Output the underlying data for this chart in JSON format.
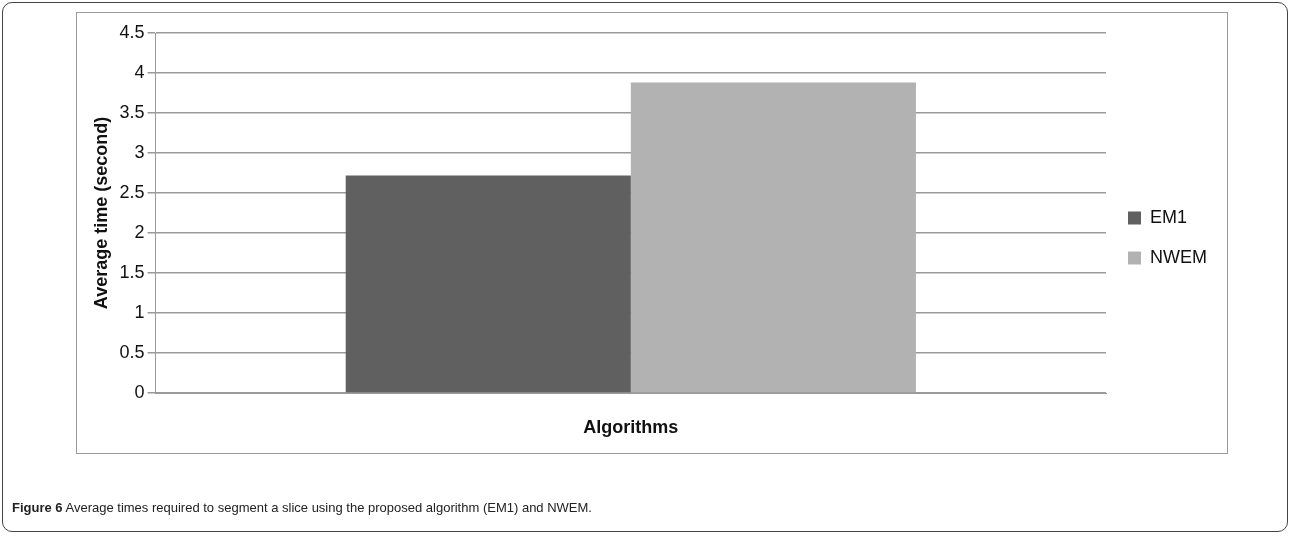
{
  "chart_data": {
    "type": "bar",
    "categories": [
      null
    ],
    "xlabel": "Algorithms",
    "ylabel": "Average time (second)",
    "series": [
      {
        "name": "EM1",
        "color": "#606060",
        "values": [
          2.72
        ]
      },
      {
        "name": "NWEM",
        "color": "#b2b2b2",
        "values": [
          3.88
        ]
      }
    ],
    "ylim": [
      0,
      4.5
    ],
    "yticks": [
      0,
      0.5,
      1,
      1.5,
      2,
      2.5,
      3,
      3.5,
      4,
      4.5
    ],
    "grid": "y",
    "legend": "right",
    "annotations": [
      "Figure 6 Average times required to segment a slice using the proposed algorithm (EM1) and NWEM."
    ]
  }
}
